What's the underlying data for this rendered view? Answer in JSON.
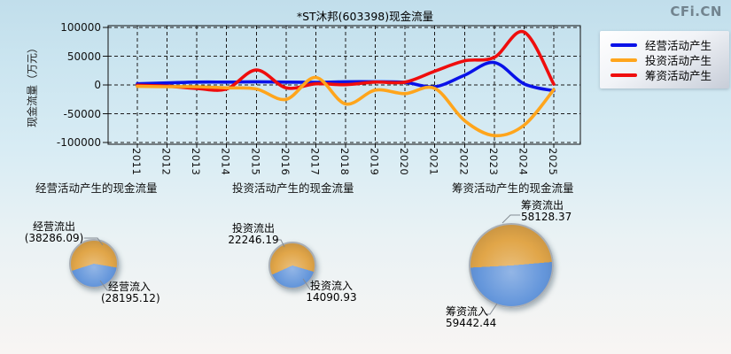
{
  "brand": "CFi.CN",
  "title": "*ST沐邦(603398)现金流量",
  "y_axis_title": "现金流量（万元）",
  "chart_data": [
    {
      "type": "line",
      "title": "*ST沐邦(603398)现金流量",
      "xlabel": "",
      "ylabel": "现金流量（万元）",
      "x": [
        2011,
        2012,
        2013,
        2014,
        2015,
        2016,
        2017,
        2018,
        2019,
        2020,
        2021,
        2022,
        2023,
        2024,
        2025
      ],
      "ylim": [
        -100000,
        100000
      ],
      "yticks": [
        100000,
        50000,
        0,
        -50000,
        -100000
      ],
      "grid": true,
      "smooth": true,
      "legend_position": "top-right",
      "series": [
        {
          "name": "经营活动产生",
          "color": "#0a12e8",
          "values": [
            2000,
            3500,
            5000,
            5000,
            5500,
            5000,
            4500,
            5500,
            5500,
            4500,
            -3000,
            17000,
            39000,
            2000,
            -10091
          ]
        },
        {
          "name": "投资活动产生",
          "color": "#ffa51c",
          "values": [
            -2500,
            -3000,
            -3000,
            -5000,
            -7000,
            -25000,
            13000,
            -33000,
            -9000,
            -15000,
            -6000,
            -62000,
            -88000,
            -70000,
            -8155
          ]
        },
        {
          "name": "筹资活动产生",
          "color": "#ef0d0d",
          "values": [
            -500,
            -2000,
            -6000,
            -7000,
            26000,
            -5000,
            2000,
            500,
            5000,
            5000,
            24000,
            42000,
            48000,
            92000,
            1314
          ]
        }
      ]
    },
    {
      "type": "pie",
      "title": "经营活动产生的现金流量",
      "slices": [
        {
          "label": "经营流出",
          "value": 38286.09,
          "color": "#dfa03d"
        },
        {
          "label": "经营流入",
          "value": 28195.12,
          "color": "#5b90d9"
        }
      ]
    },
    {
      "type": "pie",
      "title": "投资活动产生的现金流量",
      "slices": [
        {
          "label": "投资流出",
          "value": 22246.19,
          "color": "#dfa03d"
        },
        {
          "label": "投资流入",
          "value": 14090.93,
          "color": "#5b90d9"
        }
      ]
    },
    {
      "type": "pie",
      "title": "筹资活动产生的现金流量",
      "slices": [
        {
          "label": "筹资流出",
          "value": 58128.37,
          "color": "#dfa03d"
        },
        {
          "label": "筹资流入",
          "value": 59442.44,
          "color": "#5b90d9"
        }
      ]
    }
  ],
  "sections": [
    {
      "title": "经营活动产生的现金流量",
      "out_label": "经营流出",
      "out_value": "(38286.09)",
      "in_label": "经营流入",
      "in_value": "(28195.12)"
    },
    {
      "title": "投资活动产生的现金流量",
      "out_label": "投资流出",
      "out_value": "22246.19",
      "in_label": "投资流入",
      "in_value": "14090.93"
    },
    {
      "title": "筹资活动产生的现金流量",
      "out_label": "筹资流出",
      "out_value": "58128.37",
      "in_label": "筹资流入",
      "in_value": "59442.44"
    }
  ]
}
